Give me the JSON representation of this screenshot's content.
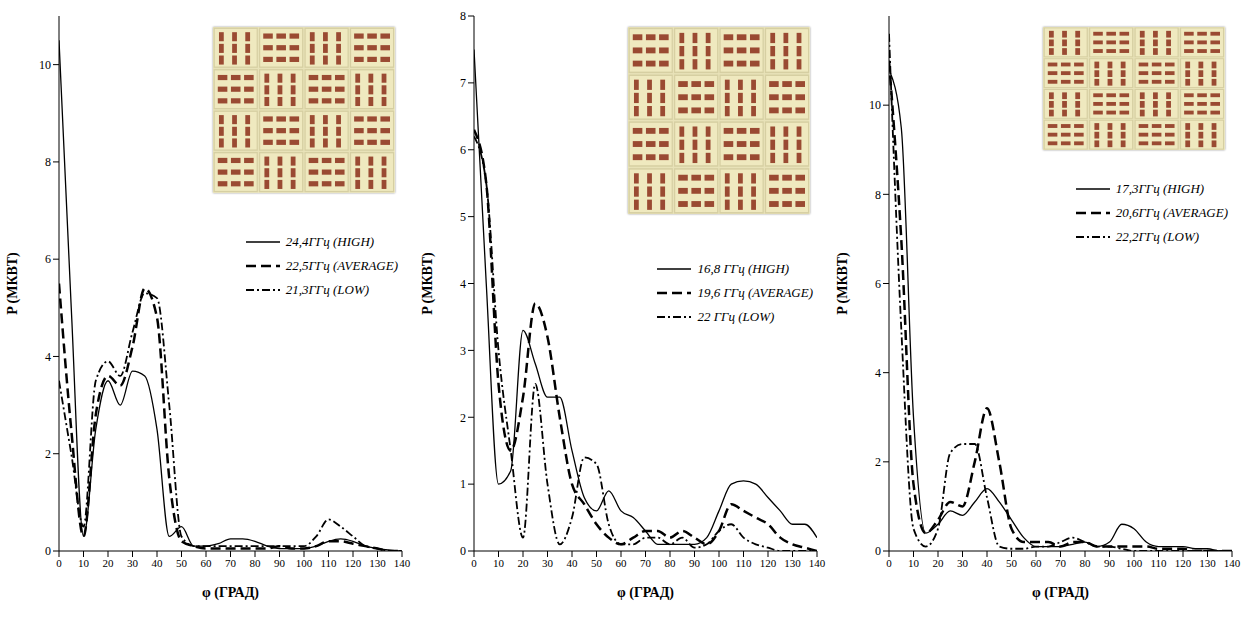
{
  "chart_data": [
    {
      "type": "line",
      "x_label": "φ (ГРАД)",
      "y_label": "P (МКВТ)",
      "legend": "right",
      "grid": false,
      "x": [
        0,
        5,
        10,
        15,
        20,
        25,
        30,
        35,
        40,
        45,
        50,
        55,
        60,
        65,
        70,
        75,
        80,
        85,
        90,
        95,
        100,
        105,
        110,
        115,
        120,
        125,
        130,
        135,
        140
      ],
      "xlim": [
        0,
        140
      ],
      "xticks": [
        0,
        10,
        20,
        30,
        40,
        50,
        60,
        70,
        80,
        90,
        100,
        110,
        120,
        130,
        140
      ],
      "ylim": [
        0,
        11
      ],
      "yticks": [
        0,
        2,
        4,
        6,
        8,
        10
      ],
      "series": [
        {
          "name": "24,4ГГц (HIGH)",
          "color": "#000000",
          "line_style": "solid",
          "values": [
            10.5,
            5,
            0.3,
            2.5,
            3.5,
            3.0,
            3.7,
            3.6,
            2.5,
            0.3,
            0.5,
            0.1,
            0.1,
            0.15,
            0.25,
            0.25,
            0.2,
            0.1,
            0.05,
            0.05,
            0.05,
            0.1,
            0.2,
            0.25,
            0.2,
            0.1,
            0.05,
            0.02,
            0
          ]
        },
        {
          "name": "22,5ГГц (AVERAGE)",
          "color": "#000000",
          "line_style": "dashed",
          "values": [
            5.5,
            2.5,
            0.3,
            2.8,
            3.6,
            3.4,
            4.2,
            5.4,
            4.8,
            1.5,
            0.2,
            0.1,
            0.05,
            0.05,
            0.05,
            0.05,
            0.05,
            0.05,
            0.1,
            0.05,
            0.05,
            0.1,
            0.2,
            0.2,
            0.15,
            0.1,
            0.05,
            0,
            0
          ]
        },
        {
          "name": "21,3ГГц (LOW)",
          "color": "#000000",
          "line_style": "dashdot",
          "values": [
            3.5,
            2,
            0.5,
            3.5,
            3.9,
            3.6,
            4.5,
            5.3,
            5.2,
            3.0,
            0.3,
            0.1,
            0.1,
            0.1,
            0.1,
            0.1,
            0.1,
            0.1,
            0.1,
            0.1,
            0.1,
            0.3,
            0.65,
            0.5,
            0.3,
            0.1,
            0.05,
            0,
            0
          ]
        }
      ]
    },
    {
      "type": "line",
      "x_label": "φ (ГРАД)",
      "y_label": "P (МКВТ)",
      "legend": "right",
      "grid": false,
      "x": [
        0,
        5,
        10,
        15,
        20,
        25,
        30,
        35,
        40,
        45,
        50,
        55,
        60,
        65,
        70,
        75,
        80,
        85,
        90,
        95,
        100,
        105,
        110,
        115,
        120,
        125,
        130,
        135,
        140
      ],
      "xlim": [
        0,
        140
      ],
      "xticks": [
        0,
        10,
        20,
        30,
        40,
        50,
        60,
        70,
        80,
        90,
        100,
        110,
        120,
        130,
        140
      ],
      "ylim": [
        0,
        8
      ],
      "yticks": [
        0,
        1,
        2,
        3,
        4,
        5,
        6,
        7,
        8
      ],
      "series": [
        {
          "name": "16,8 ГГц (HIGH)",
          "color": "#000000",
          "line_style": "solid",
          "values": [
            7.5,
            4,
            1.0,
            1.2,
            3.3,
            2.8,
            2.3,
            2.3,
            1.5,
            0.8,
            0.6,
            0.9,
            0.6,
            0.5,
            0.3,
            0.1,
            0.1,
            0.1,
            0.1,
            0.2,
            0.6,
            1.0,
            1.05,
            1.0,
            0.8,
            0.6,
            0.4,
            0.4,
            0.2
          ]
        },
        {
          "name": "19,6 ГГц (AVERAGE)",
          "color": "#000000",
          "line_style": "dashed",
          "values": [
            6.3,
            5.5,
            2.5,
            1.5,
            2.3,
            3.7,
            3.2,
            2.0,
            1.0,
            0.7,
            0.4,
            0.2,
            0.1,
            0.2,
            0.3,
            0.3,
            0.2,
            0.3,
            0.2,
            0.1,
            0.3,
            0.7,
            0.6,
            0.5,
            0.4,
            0.2,
            0.1,
            0.05,
            0
          ]
        },
        {
          "name": "22 ГГц (LOW)",
          "color": "#000000",
          "line_style": "dashdot",
          "values": [
            6.2,
            5.5,
            3,
            1.5,
            0.2,
            2.5,
            1.0,
            0.1,
            0.5,
            1.4,
            1.3,
            0.4,
            0.1,
            0.1,
            0.2,
            0.2,
            0.1,
            0.2,
            0.05,
            0.1,
            0.3,
            0.4,
            0.2,
            0.1,
            0.05,
            0,
            0,
            0,
            0
          ]
        }
      ]
    },
    {
      "type": "line",
      "x_label": "φ (ГРАД)",
      "y_label": "P (МКВТ)",
      "legend": "right",
      "grid": false,
      "x": [
        0,
        5,
        10,
        15,
        20,
        25,
        30,
        35,
        40,
        45,
        50,
        55,
        60,
        65,
        70,
        75,
        80,
        85,
        90,
        95,
        100,
        105,
        110,
        115,
        120,
        125,
        130,
        135,
        140
      ],
      "xlim": [
        0,
        140
      ],
      "xticks": [
        0,
        10,
        20,
        30,
        40,
        50,
        60,
        70,
        80,
        90,
        100,
        110,
        120,
        130,
        140
      ],
      "ylim": [
        0,
        12
      ],
      "yticks": [
        0,
        2,
        4,
        6,
        8,
        10
      ],
      "series": [
        {
          "name": "17,3ГГц (HIGH)",
          "color": "#000000",
          "line_style": "solid",
          "values": [
            10.8,
            9.5,
            3,
            0.4,
            0.6,
            0.9,
            0.8,
            1.1,
            1.4,
            1.1,
            0.7,
            0.3,
            0.1,
            0.1,
            0.1,
            0.15,
            0.2,
            0.1,
            0.2,
            0.6,
            0.5,
            0.2,
            0.1,
            0.1,
            0.1,
            0.05,
            0.05,
            0,
            0
          ]
        },
        {
          "name": "20,6ГГц (AVERAGE)",
          "color": "#000000",
          "line_style": "dashed",
          "values": [
            11,
            7,
            1.5,
            0.4,
            0.7,
            1.1,
            1.0,
            2.0,
            3.2,
            2.0,
            0.5,
            0.2,
            0.2,
            0.2,
            0.1,
            0.2,
            0.2,
            0.1,
            0.1,
            0.1,
            0.1,
            0.1,
            0.05,
            0.05,
            0.05,
            0,
            0,
            0,
            0
          ]
        },
        {
          "name": "22,2ГГц (LOW)",
          "color": "#000000",
          "line_style": "dashdot",
          "values": [
            11.6,
            5,
            0.5,
            0.1,
            0.5,
            2.2,
            2.4,
            2.4,
            1.2,
            0.1,
            0.05,
            0.05,
            0.1,
            0.1,
            0.2,
            0.3,
            0.2,
            0.1,
            0.1,
            0.05,
            0,
            0,
            0,
            0,
            0,
            0,
            0,
            0,
            0
          ]
        }
      ]
    }
  ]
}
